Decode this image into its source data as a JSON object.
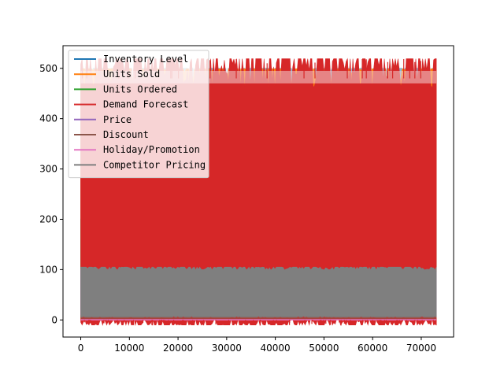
{
  "chart_data": {
    "type": "line",
    "title": "",
    "xlabel": "",
    "ylabel": "",
    "xlim": [
      -3650,
      76650
    ],
    "ylim": [
      -34,
      545
    ],
    "x_ticks": [
      0,
      10000,
      20000,
      30000,
      40000,
      50000,
      60000,
      70000
    ],
    "y_ticks": [
      0,
      100,
      200,
      300,
      400,
      500
    ],
    "x_range": [
      0,
      73100
    ],
    "grid": false,
    "legend_position": "upper-left",
    "series": [
      {
        "name": "Inventory Level",
        "color": "#1f77b4",
        "band": [
          50,
          500
        ]
      },
      {
        "name": "Units Sold",
        "color": "#ff7f0e",
        "band": [
          0,
          499
        ]
      },
      {
        "name": "Units Ordered",
        "color": "#2ca02c",
        "band": [
          20,
          200
        ]
      },
      {
        "name": "Demand Forecast",
        "color": "#d62728",
        "band": [
          -10,
          519
        ]
      },
      {
        "name": "Price",
        "color": "#9467bd",
        "band": [
          10,
          100
        ]
      },
      {
        "name": "Discount",
        "color": "#8c564b",
        "band": [
          0,
          20
        ]
      },
      {
        "name": "Holiday/Promotion",
        "color": "#e377c2",
        "band": [
          0,
          1
        ]
      },
      {
        "name": "Competitor Pricing",
        "color": "#7f7f7f",
        "band": [
          5,
          105
        ]
      }
    ]
  }
}
